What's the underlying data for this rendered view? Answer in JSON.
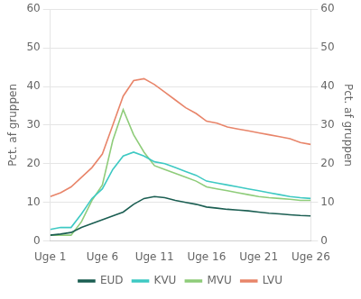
{
  "chart_data": {
    "type": "line",
    "x": [
      1,
      2,
      3,
      4,
      5,
      6,
      7,
      8,
      9,
      10,
      11,
      12,
      13,
      14,
      15,
      16,
      17,
      18,
      19,
      20,
      21,
      22,
      23,
      24,
      25,
      26
    ],
    "xlim": [
      1,
      26
    ],
    "xticks": [
      {
        "value": 1,
        "label": "Uge 1"
      },
      {
        "value": 6,
        "label": "Uge 6"
      },
      {
        "value": 11,
        "label": "Uge 11"
      },
      {
        "value": 16,
        "label": "Uge 16"
      },
      {
        "value": 21,
        "label": "Uge 21"
      },
      {
        "value": 26,
        "label": "Uge 26"
      }
    ],
    "series": [
      {
        "name": "EUD",
        "color": "#1b5e52",
        "values": [
          1.5,
          1.8,
          2.2,
          3.5,
          4.5,
          5.5,
          6.5,
          7.5,
          9.5,
          11.0,
          11.5,
          11.2,
          10.5,
          10.0,
          9.5,
          8.8,
          8.5,
          8.2,
          8.0,
          7.8,
          7.5,
          7.2,
          7.0,
          6.8,
          6.6,
          6.5
        ]
      },
      {
        "name": "KVU",
        "color": "#3ec9c3",
        "values": [
          3.0,
          3.5,
          3.5,
          7.0,
          11.0,
          13.5,
          18.5,
          22.0,
          23.0,
          22.0,
          20.5,
          20.0,
          19.0,
          18.0,
          17.0,
          15.5,
          15.0,
          14.5,
          14.0,
          13.5,
          13.0,
          12.5,
          12.0,
          11.5,
          11.2,
          11.0
        ]
      },
      {
        "name": "MVU",
        "color": "#8fcc7a",
        "values": [
          1.5,
          1.5,
          1.5,
          5.0,
          10.5,
          14.5,
          26.0,
          34.0,
          27.5,
          23.0,
          19.5,
          18.5,
          17.5,
          16.5,
          15.5,
          14.0,
          13.5,
          13.0,
          12.5,
          12.0,
          11.5,
          11.2,
          11.0,
          10.8,
          10.5,
          10.5
        ]
      },
      {
        "name": "LVU",
        "color": "#e8856a",
        "values": [
          11.5,
          12.5,
          14.0,
          16.5,
          19.0,
          22.5,
          30.0,
          37.5,
          41.5,
          42.0,
          40.5,
          38.5,
          36.5,
          34.5,
          33.0,
          31.0,
          30.5,
          29.5,
          29.0,
          28.5,
          28.0,
          27.5,
          27.0,
          26.5,
          25.5,
          25.0
        ]
      }
    ],
    "ylim": [
      0,
      60
    ],
    "yticks": [
      0,
      10,
      20,
      30,
      40,
      50,
      60
    ],
    "y2lim": [
      0,
      60
    ],
    "y2ticks": [
      0,
      10,
      20,
      30,
      40,
      50,
      60
    ],
    "ylabel": "Pct. af gruppen",
    "y2label": "Pct. af gruppen",
    "grid": true,
    "legend": "bottom"
  }
}
